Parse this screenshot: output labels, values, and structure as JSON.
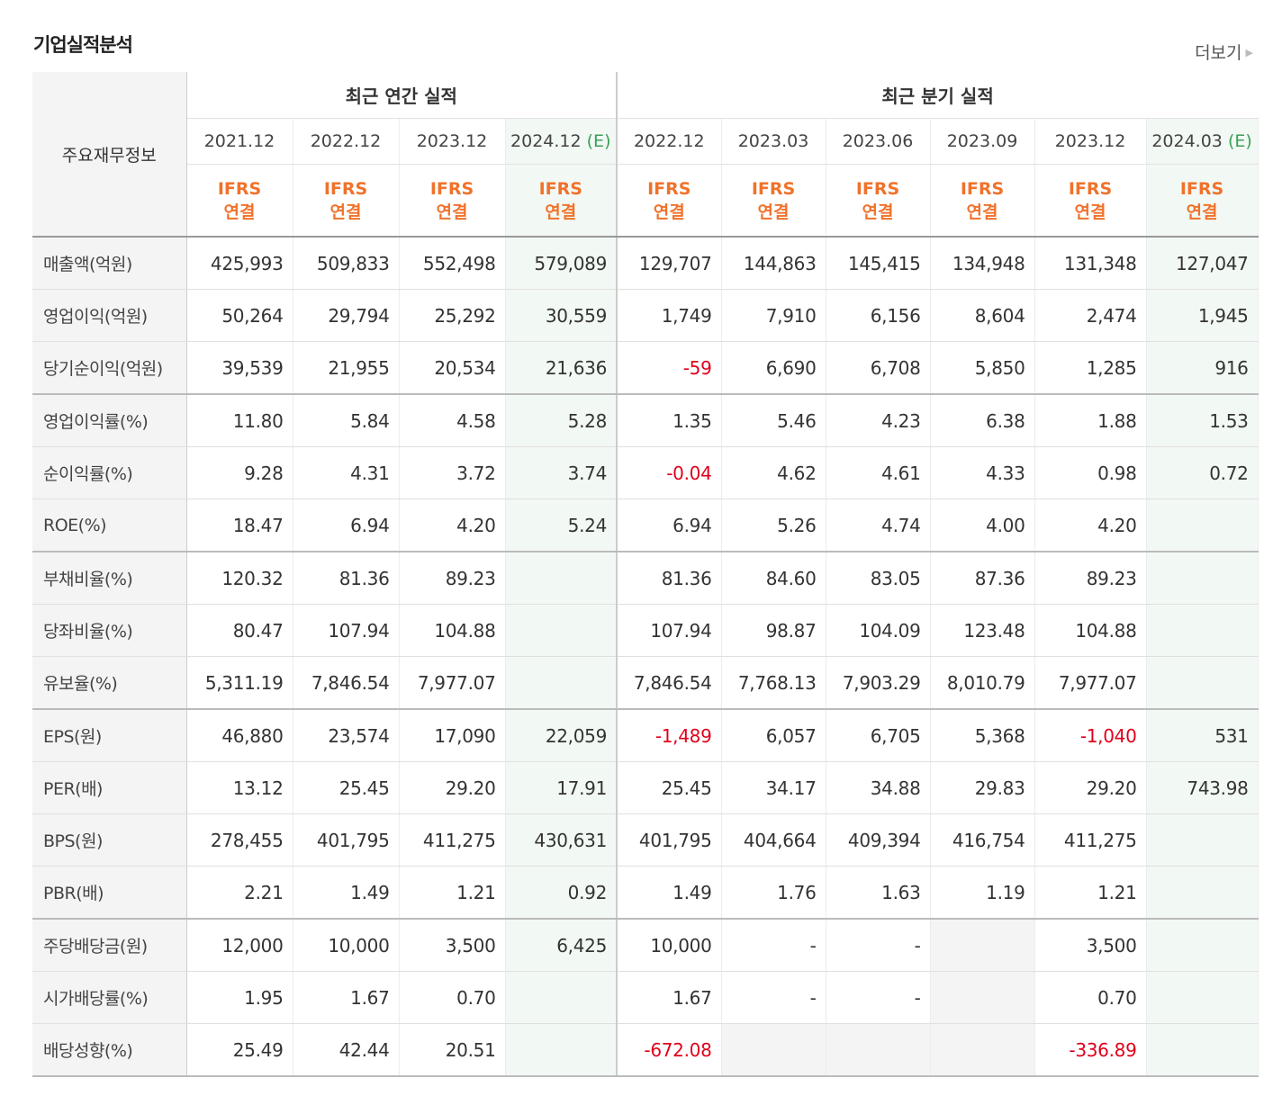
{
  "section_title": "기업실적분석",
  "more_link": "더보기",
  "row_header_label": "주요재무정보",
  "groups": {
    "annual": "최근 연간 실적",
    "quarterly": "최근 분기 실적"
  },
  "periods": [
    {
      "label": "2021.12",
      "est": ""
    },
    {
      "label": "2022.12",
      "est": ""
    },
    {
      "label": "2023.12",
      "est": ""
    },
    {
      "label": "2024.12",
      "est": "(E)"
    },
    {
      "label": "2022.12",
      "est": ""
    },
    {
      "label": "2023.03",
      "est": ""
    },
    {
      "label": "2023.06",
      "est": ""
    },
    {
      "label": "2023.09",
      "est": ""
    },
    {
      "label": "2023.12",
      "est": ""
    },
    {
      "label": "2024.03",
      "est": "(E)"
    }
  ],
  "ifrs": {
    "line1": "IFRS",
    "line2": "연결"
  },
  "rows": [
    {
      "name": "매출액(억원)",
      "values": [
        "425,993",
        "509,833",
        "552,498",
        "579,089",
        "129,707",
        "144,863",
        "145,415",
        "134,948",
        "131,348",
        "127,047"
      ]
    },
    {
      "name": "영업이익(억원)",
      "values": [
        "50,264",
        "29,794",
        "25,292",
        "30,559",
        "1,749",
        "7,910",
        "6,156",
        "8,604",
        "2,474",
        "1,945"
      ]
    },
    {
      "name": "당기순이익(억원)",
      "values": [
        "39,539",
        "21,955",
        "20,534",
        "21,636",
        "-59",
        "6,690",
        "6,708",
        "5,850",
        "1,285",
        "916"
      ]
    },
    {
      "name": "영업이익률(%)",
      "values": [
        "11.80",
        "5.84",
        "4.58",
        "5.28",
        "1.35",
        "5.46",
        "4.23",
        "6.38",
        "1.88",
        "1.53"
      ]
    },
    {
      "name": "순이익률(%)",
      "values": [
        "9.28",
        "4.31",
        "3.72",
        "3.74",
        "-0.04",
        "4.62",
        "4.61",
        "4.33",
        "0.98",
        "0.72"
      ]
    },
    {
      "name": "ROE(%)",
      "values": [
        "18.47",
        "6.94",
        "4.20",
        "5.24",
        "6.94",
        "5.26",
        "4.74",
        "4.00",
        "4.20",
        ""
      ]
    },
    {
      "name": "부채비율(%)",
      "values": [
        "120.32",
        "81.36",
        "89.23",
        "",
        "81.36",
        "84.60",
        "83.05",
        "87.36",
        "89.23",
        ""
      ]
    },
    {
      "name": "당좌비율(%)",
      "values": [
        "80.47",
        "107.94",
        "104.88",
        "",
        "107.94",
        "98.87",
        "104.09",
        "123.48",
        "104.88",
        ""
      ]
    },
    {
      "name": "유보율(%)",
      "values": [
        "5,311.19",
        "7,846.54",
        "7,977.07",
        "",
        "7,846.54",
        "7,768.13",
        "7,903.29",
        "8,010.79",
        "7,977.07",
        ""
      ]
    },
    {
      "name": "EPS(원)",
      "values": [
        "46,880",
        "23,574",
        "17,090",
        "22,059",
        "-1,489",
        "6,057",
        "6,705",
        "5,368",
        "-1,040",
        "531"
      ]
    },
    {
      "name": "PER(배)",
      "values": [
        "13.12",
        "25.45",
        "29.20",
        "17.91",
        "25.45",
        "34.17",
        "34.88",
        "29.83",
        "29.20",
        "743.98"
      ]
    },
    {
      "name": "BPS(원)",
      "values": [
        "278,455",
        "401,795",
        "411,275",
        "430,631",
        "401,795",
        "404,664",
        "409,394",
        "416,754",
        "411,275",
        ""
      ]
    },
    {
      "name": "PBR(배)",
      "values": [
        "2.21",
        "1.49",
        "1.21",
        "0.92",
        "1.49",
        "1.76",
        "1.63",
        "1.19",
        "1.21",
        ""
      ]
    },
    {
      "name": "주당배당금(원)",
      "values": [
        "12,000",
        "10,000",
        "3,500",
        "6,425",
        "10,000",
        "-",
        "-",
        "",
        "3,500",
        ""
      ]
    },
    {
      "name": "시가배당률(%)",
      "values": [
        "1.95",
        "1.67",
        "0.70",
        "",
        "1.67",
        "-",
        "-",
        "",
        "0.70",
        ""
      ]
    },
    {
      "name": "배당성향(%)",
      "values": [
        "25.49",
        "42.44",
        "20.51",
        "",
        "-672.08",
        "",
        "",
        "",
        "-336.89",
        ""
      ]
    }
  ],
  "negative_color": "#e0001b",
  "ifrs_color": "#f0722b",
  "estimate_color": "#3aa05a"
}
